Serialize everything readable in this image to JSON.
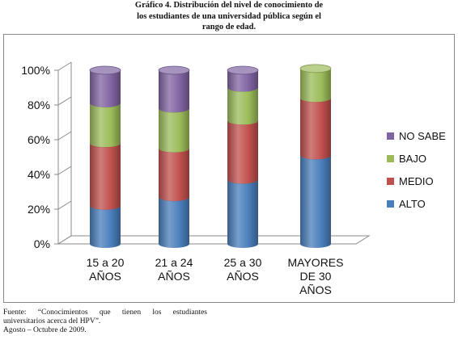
{
  "title": {
    "line1": "Gráfico 4. Distribución del nivel de conocimiento de",
    "line2": "los estudiantes de una universidad pública según el",
    "line3": "rango de edad."
  },
  "chart_data": {
    "type": "bar",
    "stacked": true,
    "style": "3d-cylinder",
    "categories": [
      [
        "15 a 20",
        "AÑOS"
      ],
      [
        "21 a 24",
        "AÑOS"
      ],
      [
        "25 a 30",
        "AÑOS"
      ],
      [
        "MAYORES",
        "DE 30",
        "AÑOS"
      ]
    ],
    "series": [
      {
        "name": "ALTO",
        "color": "#4a7ebb",
        "values": [
          22,
          27,
          37,
          51
        ]
      },
      {
        "name": "MEDIO",
        "color": "#c0504d",
        "values": [
          36,
          28,
          34,
          33
        ]
      },
      {
        "name": "BAJO",
        "color": "#9bbb59",
        "values": [
          23,
          23,
          19,
          17
        ]
      },
      {
        "name": "NO SABE",
        "color": "#8064a2",
        "values": [
          19,
          22,
          10,
          0
        ]
      }
    ],
    "ylim": [
      0,
      100
    ],
    "yticks": [
      "0%",
      "20%",
      "40%",
      "60%",
      "80%",
      "100%"
    ],
    "legend_position": "right",
    "grid": false
  },
  "source": {
    "line1": "Fuente: “Conocimientos que tienen los estudiantes",
    "line2": "universitarios acerca del HPV”.",
    "line3": "Agosto – Octubre de 2009."
  }
}
